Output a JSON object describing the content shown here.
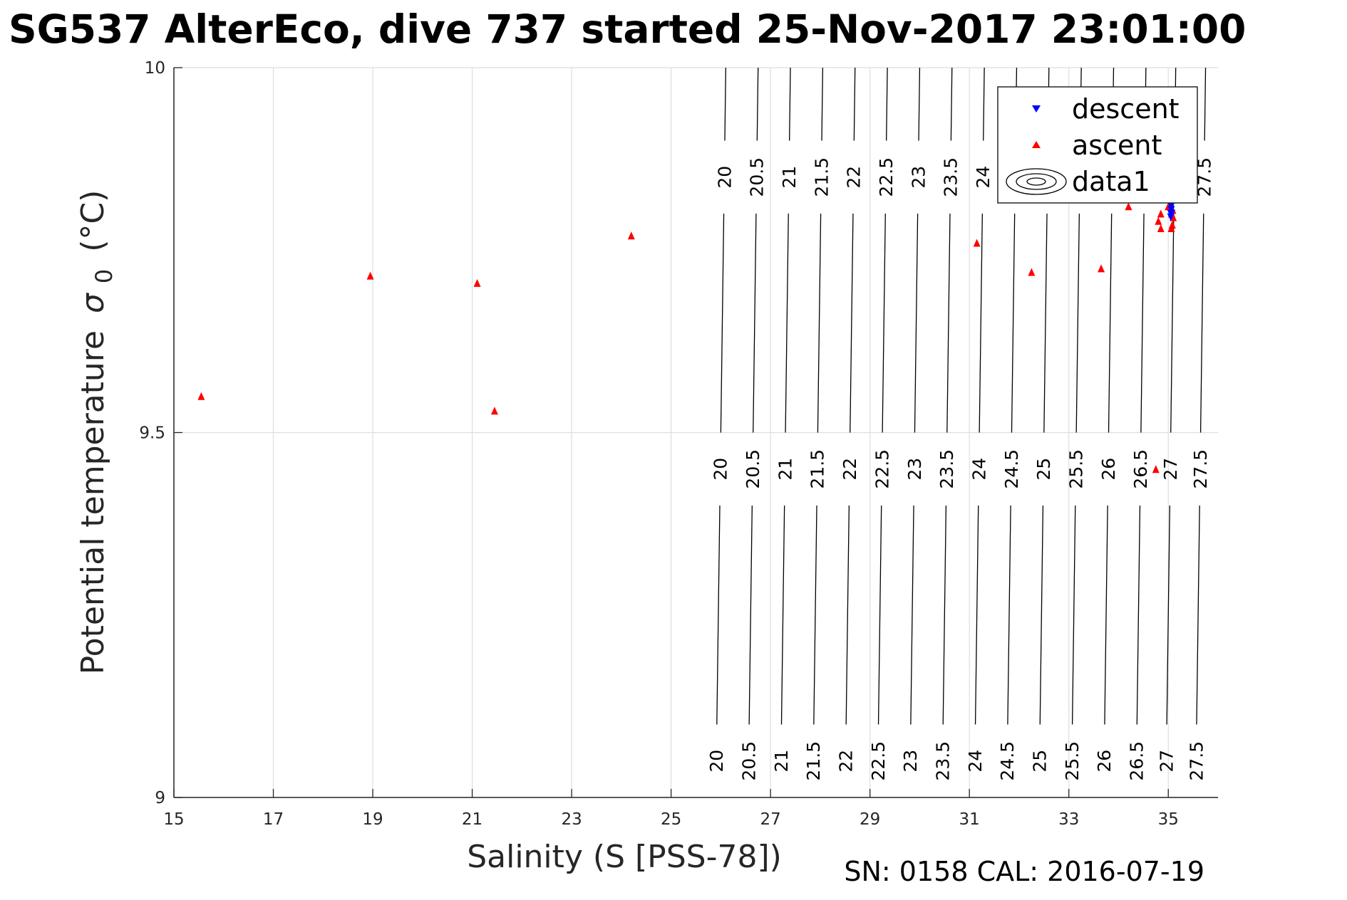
{
  "title": "SG537 AlterEco, dive 737 started 25-Nov-2017 23:01:00",
  "footer": "SN: 0158  CAL: 2016-07-19",
  "colors": {
    "descent": "#0000ff",
    "ascent": "#ff0000",
    "contour": "#000000",
    "grid": "#dedede",
    "axis": "#262626"
  },
  "chart_data": {
    "type": "scatter",
    "title": "SG537 AlterEco, dive 737 started 25-Nov-2017 23:01:00",
    "xlabel": "Salinity (S [PSS-78])",
    "ylabel": "Potential temperature",
    "ylabel_symbol": "σ",
    "ylabel_subscript": "0",
    "ylabel_unit": "(°C)",
    "xlim": [
      15,
      36
    ],
    "ylim": [
      9,
      10
    ],
    "xticks": [
      "15",
      "17",
      "19",
      "21",
      "23",
      "25",
      "27",
      "29",
      "31",
      "33",
      "35"
    ],
    "yticks": [
      "9",
      "9.5",
      "10"
    ],
    "grid": true,
    "legend_position": "top-right",
    "legend": [
      "descent",
      "ascent",
      "data1"
    ],
    "series": [
      {
        "name": "descent",
        "marker": "triangle-down",
        "color": "#0000ff",
        "points": [
          [
            35.05,
            9.8
          ],
          [
            35.05,
            9.795
          ],
          [
            35.06,
            9.805
          ],
          [
            35.07,
            9.8
          ],
          [
            35.06,
            9.81
          ]
        ]
      },
      {
        "name": "ascent",
        "marker": "triangle-up",
        "color": "#ff0000",
        "points": [
          [
            15.55,
            9.55
          ],
          [
            18.95,
            9.715
          ],
          [
            21.1,
            9.705
          ],
          [
            21.45,
            9.53
          ],
          [
            24.2,
            9.77
          ],
          [
            31.15,
            9.76
          ],
          [
            32.25,
            9.72
          ],
          [
            33.65,
            9.725
          ],
          [
            34.2,
            9.81
          ],
          [
            34.75,
            9.45
          ],
          [
            34.8,
            9.79
          ],
          [
            34.85,
            9.8
          ],
          [
            34.85,
            9.78
          ],
          [
            35.0,
            9.81
          ],
          [
            35.02,
            9.82
          ],
          [
            35.05,
            9.815
          ],
          [
            35.07,
            9.8
          ],
          [
            35.08,
            9.785
          ],
          [
            35.1,
            9.82
          ],
          [
            35.1,
            9.795
          ],
          [
            35.06,
            9.78
          ],
          [
            35.04,
            9.81
          ],
          [
            35.09,
            9.805
          ]
        ]
      }
    ],
    "contours": {
      "name": "data1",
      "levels": [
        "20",
        "20.5",
        "21",
        "21.5",
        "22",
        "22.5",
        "23",
        "23.5",
        "24",
        "24.5",
        "25",
        "25.5",
        "26",
        "26.5",
        "27",
        "27.5"
      ],
      "salinity_at_9": [
        25.9,
        26.55,
        27.2,
        27.85,
        28.5,
        29.15,
        29.8,
        30.45,
        31.1,
        31.75,
        32.4,
        33.05,
        33.7,
        34.35,
        34.95,
        35.55
      ],
      "salinity_at_10": [
        26.1,
        26.75,
        27.4,
        28.05,
        28.7,
        29.35,
        30.0,
        30.65,
        31.3,
        31.95,
        32.6,
        33.25,
        33.9,
        34.55,
        35.15,
        35.75
      ],
      "label_temperatures": [
        9.05,
        9.45,
        9.85
      ]
    }
  }
}
